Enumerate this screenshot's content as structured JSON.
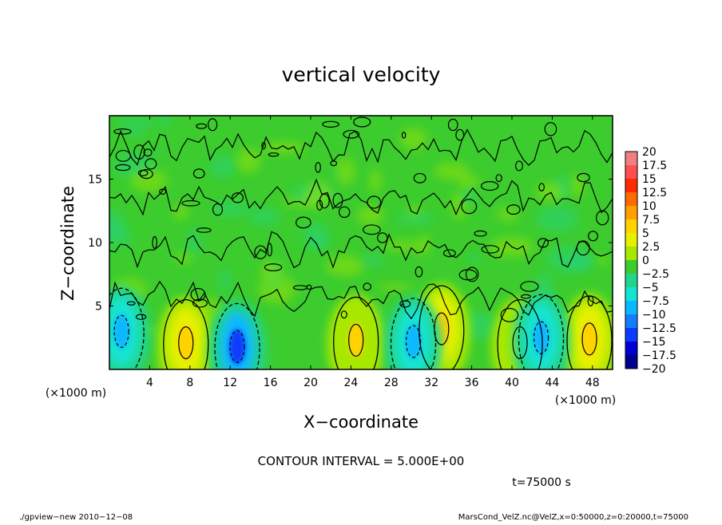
{
  "chart_data": {
    "type": "heatmap",
    "title": "vertical velocity",
    "xlabel": "X−coordinate",
    "ylabel": "Z−coordinate",
    "x_unit_label": "(×1000 m)",
    "x_unit_label_right": "(×1000 m)",
    "xlim": [
      0,
      50
    ],
    "ylim": [
      0,
      20
    ],
    "x_ticks": [
      4,
      8,
      12,
      16,
      20,
      24,
      28,
      32,
      36,
      40,
      44,
      48
    ],
    "y_ticks": [
      5,
      10,
      15
    ],
    "colorbar": {
      "levels": [
        -20,
        -17.5,
        -15,
        -12.5,
        -10,
        -7.5,
        -5,
        -2.5,
        0,
        2.5,
        5,
        7.5,
        10,
        12.5,
        15,
        17.5,
        20
      ],
      "labels": [
        "20",
        "17.5",
        "15",
        "12.5",
        "10",
        "7.5",
        "5",
        "2.5",
        "0",
        "−2.5",
        "−5",
        "−7.5",
        "−10",
        "−12.5",
        "−15",
        "−17.5",
        "−20"
      ],
      "colors": [
        "#f08080",
        "#ff5050",
        "#ff2a00",
        "#ff6a00",
        "#ffa000",
        "#ffd200",
        "#e6f000",
        "#a8e800",
        "#3ccc2e",
        "#22d58c",
        "#14e4d2",
        "#0ab8ff",
        "#147cff",
        "#0a3cff",
        "#0000d0",
        "#00008c",
        "#6a0ac0"
      ]
    },
    "features": [
      {
        "kind": "updraft",
        "x": 7.6,
        "z": 2.1,
        "value": 10
      },
      {
        "kind": "updraft",
        "x": 24.5,
        "z": 2.3,
        "value": 8
      },
      {
        "kind": "updraft",
        "x": 33.0,
        "z": 3.2,
        "value": 9
      },
      {
        "kind": "updraft",
        "x": 40.8,
        "z": 2.1,
        "value": 7
      },
      {
        "kind": "updraft",
        "x": 47.7,
        "z": 2.4,
        "value": 10
      },
      {
        "kind": "downdraft",
        "x": 1.2,
        "z": 3.0,
        "value": -6
      },
      {
        "kind": "downdraft",
        "x": 12.7,
        "z": 1.8,
        "value": -12
      },
      {
        "kind": "downdraft",
        "x": 30.2,
        "z": 2.2,
        "value": -5
      },
      {
        "kind": "downdraft",
        "x": 42.9,
        "z": 2.5,
        "value": -7
      }
    ]
  },
  "annotations": {
    "contour_interval": "CONTOUR INTERVAL = 5.000E+00",
    "time": "t=75000 s"
  },
  "footer": {
    "left": "./gpview−new   2010−12−08",
    "right": "MarsCond_VelZ.nc@VelZ,x=0:50000,z=0:20000,t=75000"
  }
}
